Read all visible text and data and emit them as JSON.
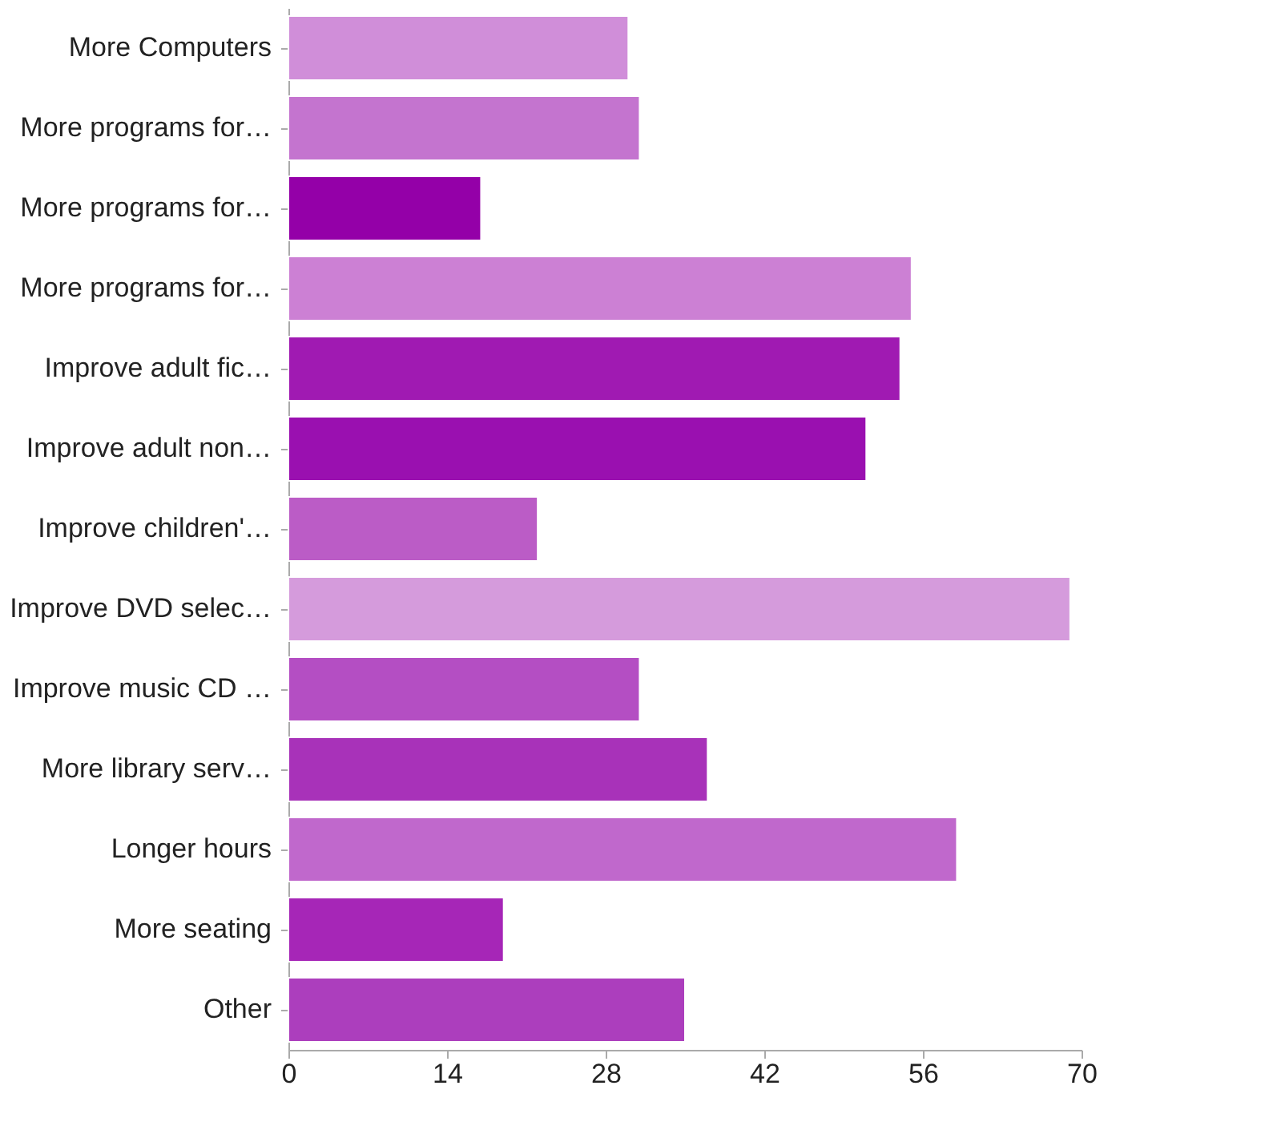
{
  "chart_data": {
    "type": "bar",
    "orientation": "horizontal",
    "categories": [
      "More Computers",
      "More programs for…",
      "More programs for…",
      "More programs for…",
      "Improve adult fic…",
      "Improve adult non…",
      "Improve children'…",
      "Improve DVD selec…",
      "Improve music CD …",
      "More library serv…",
      "Longer hours",
      "More seating",
      "Other"
    ],
    "values": [
      30,
      31,
      17,
      55,
      54,
      51,
      22,
      69,
      31,
      37,
      59,
      19,
      35
    ],
    "colors": [
      "#d08ed9",
      "#c474cf",
      "#9400a8",
      "#cc80d4",
      "#a01ab2",
      "#9a10b0",
      "#bb5cc6",
      "#d59bdc",
      "#b44ec3",
      "#a832b9",
      "#c068cc",
      "#a626b7",
      "#ac3ebd"
    ],
    "xlim": [
      0,
      70
    ],
    "xticks": [
      0,
      14,
      28,
      42,
      56,
      70
    ],
    "grid": false
  }
}
